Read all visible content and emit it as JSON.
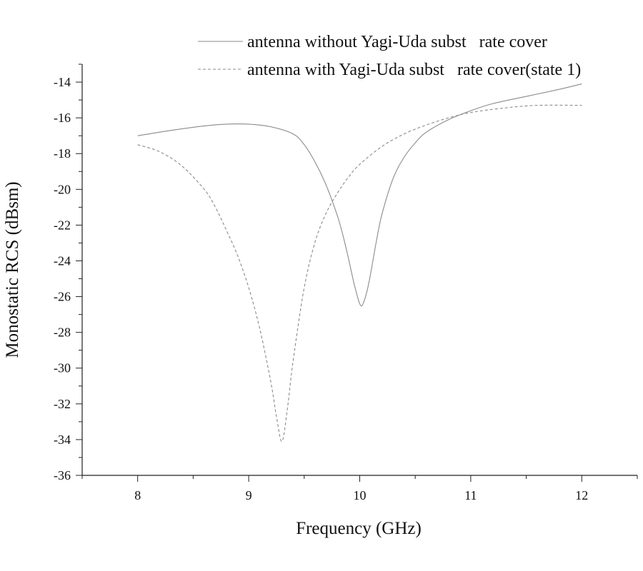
{
  "chart_data": {
    "type": "line",
    "title": "",
    "xlabel": "Frequency  (GHz)",
    "ylabel": "Monostatic RCS (dBsm)",
    "xlim": [
      7.5,
      12.5
    ],
    "ylim": [
      -36,
      -13
    ],
    "x_ticks": [
      8,
      9,
      10,
      11,
      12
    ],
    "x_tick_labels": [
      "8",
      "9",
      "10",
      "11",
      "12"
    ],
    "y_ticks": [
      -36,
      -34,
      -32,
      -30,
      -28,
      -26,
      -24,
      -22,
      -20,
      -18,
      -16,
      -14
    ],
    "y_tick_labels": [
      "-36",
      "-34",
      "-32",
      "-30",
      "-28",
      "-26",
      "-24",
      "-22",
      "-20",
      "-18",
      "-16",
      "-14"
    ],
    "grid": false,
    "legend_position": "top-right",
    "series": [
      {
        "name": "antenna without Yagi-Uda subst   rate cover",
        "style": "solid",
        "color": "#8a8a8a",
        "points": [
          [
            8.0,
            -17.0
          ],
          [
            8.3,
            -16.7
          ],
          [
            8.6,
            -16.45
          ],
          [
            8.8,
            -16.35
          ],
          [
            9.0,
            -16.35
          ],
          [
            9.2,
            -16.5
          ],
          [
            9.4,
            -16.9
          ],
          [
            9.5,
            -17.5
          ],
          [
            9.6,
            -18.5
          ],
          [
            9.7,
            -19.8
          ],
          [
            9.8,
            -21.5
          ],
          [
            9.85,
            -22.6
          ],
          [
            9.9,
            -23.9
          ],
          [
            9.95,
            -25.3
          ],
          [
            10.0,
            -26.4
          ],
          [
            10.03,
            -26.4
          ],
          [
            10.08,
            -25.3
          ],
          [
            10.15,
            -22.9
          ],
          [
            10.2,
            -21.4
          ],
          [
            10.3,
            -19.4
          ],
          [
            10.4,
            -18.2
          ],
          [
            10.5,
            -17.4
          ],
          [
            10.6,
            -16.8
          ],
          [
            10.8,
            -16.1
          ],
          [
            11.0,
            -15.6
          ],
          [
            11.2,
            -15.2
          ],
          [
            11.5,
            -14.8
          ],
          [
            11.8,
            -14.4
          ],
          [
            12.0,
            -14.1
          ]
        ]
      },
      {
        "name": "antenna with Yagi-Uda subst   rate cover(state 1)",
        "style": "dashed",
        "color": "#8a8a8a",
        "points": [
          [
            8.0,
            -17.5
          ],
          [
            8.2,
            -17.9
          ],
          [
            8.4,
            -18.7
          ],
          [
            8.6,
            -20.0
          ],
          [
            8.7,
            -21.0
          ],
          [
            8.8,
            -22.3
          ],
          [
            8.9,
            -23.7
          ],
          [
            9.0,
            -25.5
          ],
          [
            9.1,
            -27.8
          ],
          [
            9.2,
            -30.8
          ],
          [
            9.25,
            -32.7
          ],
          [
            9.3,
            -34.1
          ],
          [
            9.35,
            -32.2
          ],
          [
            9.4,
            -29.6
          ],
          [
            9.5,
            -25.5
          ],
          [
            9.6,
            -22.9
          ],
          [
            9.7,
            -21.3
          ],
          [
            9.8,
            -20.2
          ],
          [
            9.9,
            -19.3
          ],
          [
            10.0,
            -18.6
          ],
          [
            10.2,
            -17.6
          ],
          [
            10.4,
            -16.9
          ],
          [
            10.6,
            -16.4
          ],
          [
            10.8,
            -16.0
          ],
          [
            11.0,
            -15.7
          ],
          [
            11.3,
            -15.45
          ],
          [
            11.6,
            -15.3
          ],
          [
            12.0,
            -15.3
          ]
        ]
      }
    ]
  }
}
